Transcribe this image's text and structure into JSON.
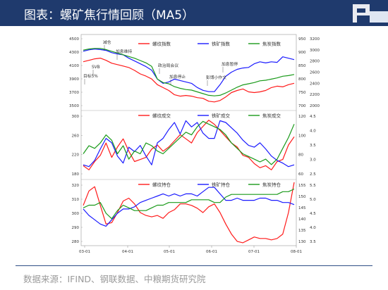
{
  "header": {
    "title": "图表：螺矿焦行情回顾（MA5）"
  },
  "footer": {
    "source": "数据来源：IFIND、钢联数据、中粮期货研究院"
  },
  "colors": {
    "rebar": "#ff1a1a",
    "iron_ore": "#1a1aff",
    "coke": "#1a9a1a",
    "brand": "#1f3a6d"
  },
  "chart_data": [
    {
      "type": "line",
      "title": "",
      "x_ticks": [
        "03-01",
        "04-01",
        "05-01",
        "06-01",
        "07-01",
        "08-01"
      ],
      "y_left_ticks": [
        "4500",
        "4300",
        "4100",
        "3900",
        "3700",
        "3500"
      ],
      "y_left_range": [
        3450,
        4500
      ],
      "y_right1_ticks": [
        "950",
        "900",
        "850",
        "800",
        "750",
        "700"
      ],
      "y_right1_range": [
        690,
        960
      ],
      "y_right2_ticks": [
        "3200",
        "3000",
        "2800",
        "2600",
        "2400",
        "2200",
        "2000"
      ],
      "y_right2_range": [
        1950,
        3250
      ],
      "legend": [
        "螺纹指数",
        "铁矿指数",
        "焦炭指数"
      ],
      "annotations": [
        "减仓",
        "加息维持",
        "SVB",
        "目标5%",
        "政治局会议",
        "加息停止",
        "加息暂停",
        "彭博小作文"
      ],
      "series": [
        {
          "name": "螺纹指数",
          "axis": "left",
          "values": [
            4120,
            4140,
            4160,
            4170,
            4140,
            4100,
            4080,
            4060,
            4040,
            4000,
            3950,
            3920,
            3880,
            3800,
            3760,
            3720,
            3660,
            3640,
            3650,
            3640,
            3620,
            3610,
            3570,
            3560,
            3580,
            3630,
            3690,
            3720,
            3740,
            3700,
            3690,
            3700,
            3720,
            3760,
            3780,
            3770,
            3800,
            3820
          ]
        },
        {
          "name": "铁矿指数",
          "axis": "right1",
          "values": [
            900,
            905,
            908,
            906,
            903,
            895,
            890,
            887,
            875,
            865,
            855,
            845,
            832,
            800,
            785,
            790,
            800,
            795,
            790,
            785,
            770,
            760,
            755,
            755,
            780,
            810,
            825,
            835,
            840,
            842,
            855,
            862,
            858,
            862,
            860,
            880,
            875,
            870
          ]
        },
        {
          "name": "焦炭指数",
          "axis": "right2",
          "values": [
            2980,
            3000,
            3010,
            3010,
            2990,
            2960,
            2930,
            2900,
            2870,
            2840,
            2800,
            2760,
            2700,
            2480,
            2420,
            2400,
            2350,
            2320,
            2300,
            2290,
            2260,
            2230,
            2200,
            2190,
            2200,
            2240,
            2290,
            2340,
            2380,
            2400,
            2420,
            2450,
            2460,
            2480,
            2500,
            2530,
            2540,
            2560
          ]
        }
      ]
    },
    {
      "type": "line",
      "title": "",
      "x_ticks": [
        "03-01",
        "04-01",
        "05-01",
        "06-01",
        "07-01",
        "08-01"
      ],
      "y_left_ticks": [
        "300",
        "260",
        "220",
        "180"
      ],
      "y_left_range": [
        160,
        320
      ],
      "y_right1_ticks": [
        "120",
        "100",
        "80",
        "60"
      ],
      "y_right1_range": [
        55,
        130
      ],
      "y_right2_ticks": [
        "4.5",
        "4.0",
        "3.5",
        "3.0",
        "2.5"
      ],
      "y_right2_range": [
        2.3,
        4.75
      ],
      "legend": [
        "螺纹成交",
        "铁矿成交",
        "焦炭成交"
      ],
      "series": [
        {
          "name": "螺纹成交",
          "axis": "left",
          "values": [
            190,
            180,
            200,
            215,
            245,
            210,
            235,
            255,
            225,
            200,
            205,
            210,
            230,
            240,
            225,
            235,
            250,
            265,
            255,
            245,
            270,
            285,
            300,
            290,
            275,
            260,
            245,
            235,
            215,
            210,
            195,
            185,
            190,
            180,
            200,
            205,
            240,
            260
          ]
        },
        {
          "name": "铁矿成交",
          "axis": "right1",
          "values": [
            70,
            68,
            75,
            88,
            100,
            95,
            80,
            72,
            90,
            85,
            92,
            80,
            70,
            95,
            100,
            110,
            118,
            105,
            120,
            113,
            118,
            106,
            100,
            100,
            120,
            118,
            112,
            106,
            98,
            92,
            90,
            95,
            88,
            80,
            75,
            72,
            68,
            70
          ]
        },
        {
          "name": "焦炭成交",
          "axis": "right2",
          "values": [
            3.2,
            3.5,
            3.4,
            3.6,
            3.9,
            3.7,
            3.2,
            3.5,
            3.0,
            3.3,
            3.2,
            3.6,
            3.5,
            3.3,
            3.2,
            3.4,
            3.6,
            3.8,
            4.0,
            3.9,
            4.2,
            4.4,
            4.3,
            4.2,
            4.1,
            3.9,
            3.6,
            3.4,
            3.2,
            3.1,
            3.0,
            2.9,
            3.0,
            2.8,
            3.0,
            3.4,
            3.8,
            4.3
          ]
        }
      ]
    },
    {
      "type": "line",
      "title": "",
      "x_ticks": [
        "03-01",
        "04-01",
        "05-01",
        "06-01",
        "07-01",
        "08-01"
      ],
      "y_left_ticks": [
        "320",
        "310",
        "300",
        "290",
        "280"
      ],
      "y_left_range": [
        277,
        322
      ],
      "y_right1_ticks": [
        "155",
        "150",
        "145",
        "140",
        "135",
        "130"
      ],
      "y_right1_range": [
        128,
        158
      ],
      "y_right2_ticks": [
        "5.5",
        "5.0",
        "4.5",
        "4.0",
        "3.5"
      ],
      "y_right2_range": [
        3.3,
        5.7
      ],
      "legend": [
        "螺纹持仓",
        "铁矿持仓",
        "焦炭持仓"
      ],
      "series": [
        {
          "name": "螺纹持仓",
          "axis": "left",
          "values": [
            305,
            315,
            318,
            305,
            292,
            293,
            300,
            308,
            310,
            306,
            300,
            298,
            297,
            298,
            296,
            300,
            302,
            306,
            306,
            305,
            303,
            300,
            304,
            306,
            300,
            292,
            285,
            280,
            279,
            281,
            283,
            282,
            282,
            281,
            282,
            285,
            300,
            321
          ]
        },
        {
          "name": "铁矿持仓",
          "axis": "right1",
          "values": [
            145,
            142,
            140,
            138,
            137,
            140,
            143,
            145,
            145,
            146,
            148,
            149,
            150,
            151,
            152,
            151,
            152,
            151,
            152,
            152,
            151,
            153,
            155,
            155,
            152,
            149,
            149,
            150,
            149,
            149,
            149,
            150,
            150,
            149,
            149,
            148,
            148,
            147
          ]
        },
        {
          "name": "焦炭持仓",
          "axis": "right2",
          "values": [
            4.7,
            4.8,
            4.8,
            4.9,
            4.5,
            4.3,
            4.6,
            4.8,
            4.7,
            4.6,
            4.6,
            4.6,
            4.7,
            4.8,
            4.8,
            4.9,
            4.9,
            4.9,
            4.9,
            5.0,
            5.0,
            5.0,
            5.0,
            4.9,
            4.9,
            5.1,
            5.2,
            5.2,
            5.2,
            5.2,
            5.2,
            5.2,
            5.2,
            5.2,
            5.2,
            5.3,
            5.3,
            5.4
          ]
        }
      ]
    }
  ]
}
